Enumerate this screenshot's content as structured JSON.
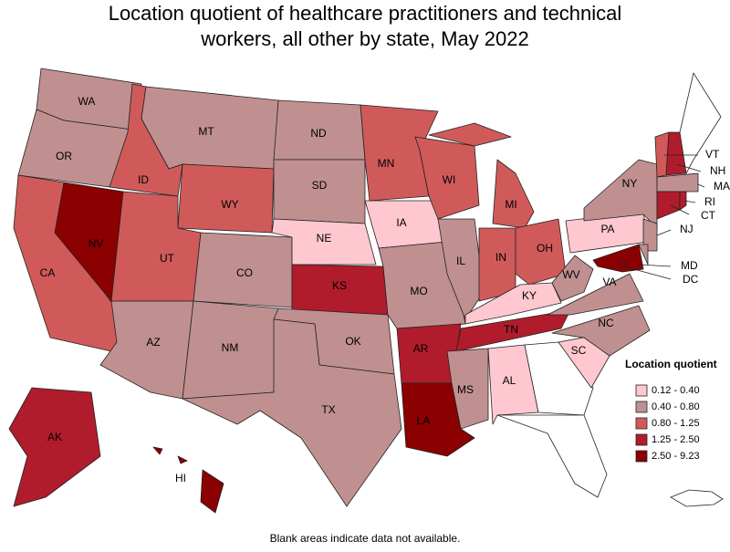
{
  "title_lines": [
    "Location quotient of healthcare practitioners and technical",
    "workers, all other by state, May 2022"
  ],
  "legend": {
    "title": "Location quotient",
    "classes": [
      {
        "label": "0.12 - 0.40",
        "color": "#ffc8d0"
      },
      {
        "label": "0.40 - 0.80",
        "color": "#c09090"
      },
      {
        "label": "0.80 - 1.25",
        "color": "#d05a5a"
      },
      {
        "label": "1.25 - 2.50",
        "color": "#b01c2c"
      },
      {
        "label": "2.50 - 9.23",
        "color": "#8b0000"
      }
    ]
  },
  "blank_color": "#ffffff",
  "states": [
    {
      "label": "WA",
      "class": 1
    },
    {
      "label": "OR",
      "class": 1
    },
    {
      "label": "CA",
      "class": 2
    },
    {
      "label": "NV",
      "class": 4
    },
    {
      "label": "ID",
      "class": 2
    },
    {
      "label": "MT",
      "class": 1
    },
    {
      "label": "WY",
      "class": 2
    },
    {
      "label": "UT",
      "class": 2
    },
    {
      "label": "CO",
      "class": 1
    },
    {
      "label": "AZ",
      "class": 1
    },
    {
      "label": "NM",
      "class": 1
    },
    {
      "label": "ND",
      "class": 1
    },
    {
      "label": "SD",
      "class": 1
    },
    {
      "label": "NE",
      "class": 0
    },
    {
      "label": "KS",
      "class": 3
    },
    {
      "label": "OK",
      "class": 1
    },
    {
      "label": "TX",
      "class": 1
    },
    {
      "label": "MN",
      "class": 2
    },
    {
      "label": "IA",
      "class": 0
    },
    {
      "label": "MO",
      "class": 1
    },
    {
      "label": "AR",
      "class": 3
    },
    {
      "label": "LA",
      "class": 4
    },
    {
      "label": "WI",
      "class": 2
    },
    {
      "label": "IL",
      "class": 1
    },
    {
      "label": "MI",
      "class": 2
    },
    {
      "label": "IN",
      "class": 2
    },
    {
      "label": "OH",
      "class": 2
    },
    {
      "label": "KY",
      "class": 0
    },
    {
      "label": "TN",
      "class": 3
    },
    {
      "label": "MS",
      "class": 1
    },
    {
      "label": "AL",
      "class": 0
    },
    {
      "label": null,
      "class": null
    },
    {
      "label": null,
      "class": null
    },
    {
      "label": "SC",
      "class": 0
    },
    {
      "label": "NC",
      "class": 1
    },
    {
      "label": "VA",
      "class": 1
    },
    {
      "label": "WV",
      "class": 1
    },
    {
      "label": "PA",
      "class": 0
    },
    {
      "label": "NY",
      "class": 1
    },
    {
      "label": "NJ",
      "class": 1
    },
    {
      "label": "MD",
      "class": 4
    },
    {
      "label": null,
      "class": 1
    },
    {
      "label": "VT",
      "class": 2
    },
    {
      "label": "NH",
      "class": 3
    },
    {
      "label": null,
      "class": null
    },
    {
      "label": "MA",
      "class": 1
    },
    {
      "label": "CT",
      "class": 3
    },
    {
      "label": "RI",
      "class": 3
    },
    {
      "label": "AK",
      "class": 3
    },
    {
      "label": "HI",
      "class": 4
    },
    {
      "label": "DC",
      "class": 4
    }
  ],
  "footnote": "Blank areas indicate data not available."
}
